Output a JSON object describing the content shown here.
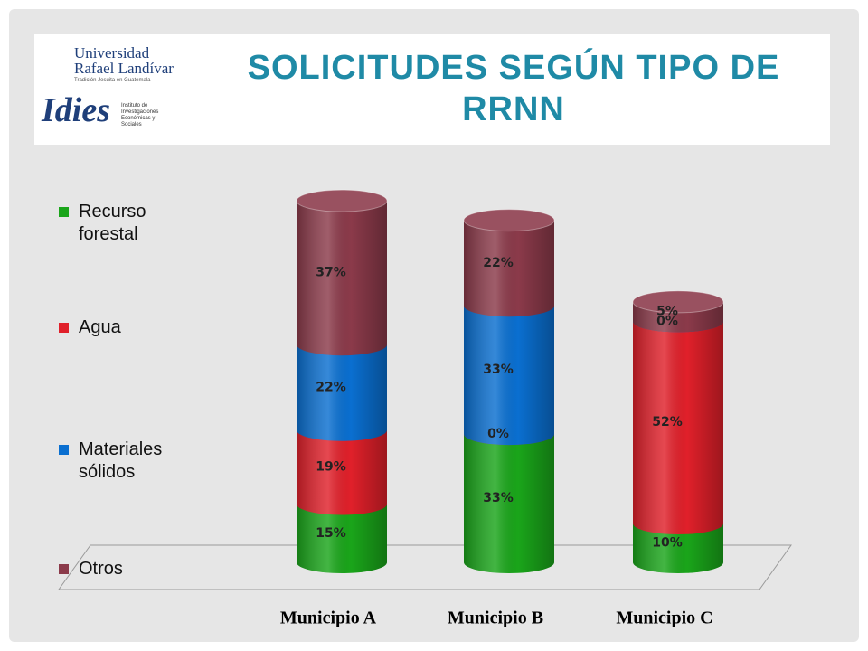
{
  "header": {
    "logo": {
      "university": "Universidad Rafael Landívar",
      "motto": "Tradición Jesuita en Guatemala",
      "institute": "Idies",
      "institute_name": "Instituto de Investigaciones Económicas y Sociales"
    }
  },
  "chart_data": {
    "type": "bar",
    "stacked": true,
    "title": "SOLICITUDES SEGÚN TIPO DE RRNN",
    "categories": [
      "Municipio A",
      "Municipio B",
      "Municipio C"
    ],
    "series": [
      {
        "name": "Recurso forestal",
        "color": "#1aa51a",
        "values": [
          15,
          33,
          10
        ],
        "value_labels": [
          "15%",
          "33%",
          "10%"
        ]
      },
      {
        "name": "Agua",
        "color": "#e0202a",
        "values": [
          19,
          0,
          52
        ],
        "value_labels": [
          "19%",
          "0%",
          "52%"
        ]
      },
      {
        "name": "Materiales sólidos",
        "color": "#0a6fd0",
        "values": [
          22,
          33,
          0
        ],
        "value_labels": [
          "22%",
          "33%",
          "0%"
        ]
      },
      {
        "name": "Otros",
        "color": "#8b3a4a",
        "values": [
          37,
          22,
          5
        ],
        "value_labels": [
          "37%",
          "22%",
          "5%"
        ]
      }
    ],
    "legend": "left"
  }
}
